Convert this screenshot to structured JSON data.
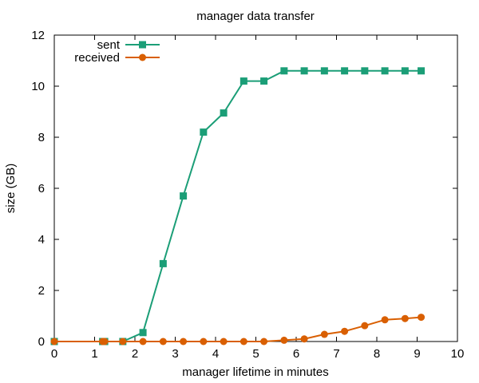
{
  "chart_data": {
    "type": "line",
    "title": "manager data transfer",
    "xlabel": "manager lifetime in minutes",
    "ylabel": "size (GB)",
    "xlim": [
      0,
      10
    ],
    "ylim": [
      0,
      12
    ],
    "xticks": [
      0,
      1,
      2,
      3,
      4,
      5,
      6,
      7,
      8,
      9,
      10
    ],
    "yticks": [
      0,
      2,
      4,
      6,
      8,
      10,
      12
    ],
    "grid": false,
    "legend_position": "top-left",
    "series": [
      {
        "name": "sent",
        "color": "#1b9e77",
        "marker": "square",
        "x": [
          0,
          1.2,
          1.25,
          1.7,
          2.2,
          2.7,
          3.2,
          3.7,
          4.2,
          4.7,
          5.2,
          5.7,
          6.2,
          6.7,
          7.2,
          7.7,
          8.2,
          8.7,
          9.1
        ],
        "y": [
          0,
          0,
          0,
          0,
          0.35,
          3.05,
          5.7,
          8.2,
          8.95,
          10.2,
          10.2,
          10.6,
          10.6,
          10.6,
          10.6,
          10.6,
          10.6,
          10.6,
          10.6
        ]
      },
      {
        "name": "received",
        "color": "#d95f02",
        "marker": "circle",
        "x": [
          0,
          1.2,
          1.25,
          1.7,
          2.2,
          2.7,
          3.2,
          3.7,
          4.2,
          4.7,
          5.2,
          5.7,
          6.2,
          6.7,
          7.2,
          7.7,
          8.2,
          8.7,
          9.1
        ],
        "y": [
          0,
          0,
          0,
          0,
          0,
          0,
          0,
          0,
          0,
          0,
          0,
          0.05,
          0.1,
          0.28,
          0.4,
          0.62,
          0.85,
          0.9,
          0.95
        ]
      }
    ]
  }
}
